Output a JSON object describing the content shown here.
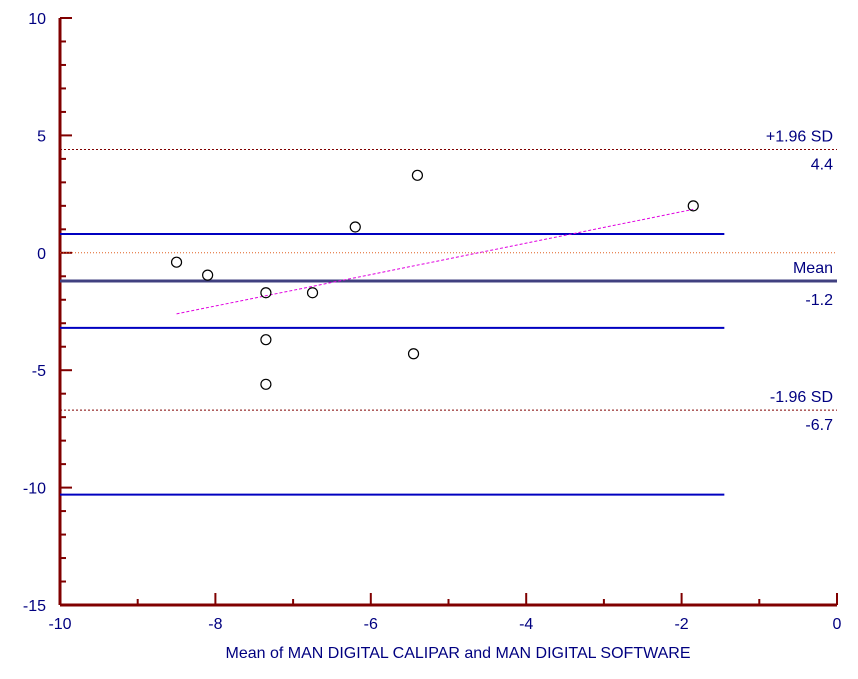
{
  "chart_data": {
    "type": "scatter",
    "title": "",
    "xlabel": "Mean of MAN DIGITAL CALIPAR and MAN DIGITAL SOFTWARE",
    "ylabel": "",
    "xlim": [
      -10,
      0
    ],
    "ylim": [
      -15,
      10
    ],
    "x_ticks": [
      -10,
      -8,
      -6,
      -4,
      -2,
      0
    ],
    "y_ticks": [
      -15,
      -10,
      -5,
      0,
      5,
      10
    ],
    "x_tick_labels": [
      "-10",
      "-8",
      "-6",
      "-4",
      "-2",
      "0"
    ],
    "y_tick_labels": [
      "-15",
      "-10",
      "-5",
      "0",
      "5",
      "10"
    ],
    "x_minor_step": 1,
    "y_minor_step": 1,
    "grid": false,
    "points": [
      {
        "x": -8.5,
        "y": -0.4
      },
      {
        "x": -8.1,
        "y": -0.95
      },
      {
        "x": -7.35,
        "y": -1.7
      },
      {
        "x": -7.35,
        "y": -3.7
      },
      {
        "x": -7.35,
        "y": -5.6
      },
      {
        "x": -6.75,
        "y": -1.7
      },
      {
        "x": -6.2,
        "y": 1.1
      },
      {
        "x": -5.4,
        "y": 3.3
      },
      {
        "x": -5.45,
        "y": -4.3
      },
      {
        "x": -1.85,
        "y": 2.0
      }
    ],
    "reference_lines": {
      "mean": -1.2,
      "upper_loa": 4.4,
      "lower_loa": -6.7,
      "zero": 0
    },
    "confidence_lines": {
      "x_range": [
        -10,
        -1.45
      ],
      "values": [
        0.8,
        -3.2,
        -10.3
      ]
    },
    "regression_line": {
      "x": [
        -8.5,
        -1.85
      ],
      "y": [
        -2.6,
        1.85
      ]
    },
    "labels": {
      "upper_sd": "+1.96 SD",
      "upper_value": "4.4",
      "mean": "Mean",
      "mean_value": "-1.2",
      "lower_sd": "-1.96 SD",
      "lower_value": "-6.7"
    },
    "colors": {
      "axis": "#800000",
      "tick_label": "#000080",
      "mean_line": "#404080",
      "loa_line": "#800000",
      "zero_line": "#e06020",
      "confidence_line": "#0000c0",
      "regression_line": "#e000e0",
      "marker": "#000000"
    }
  }
}
